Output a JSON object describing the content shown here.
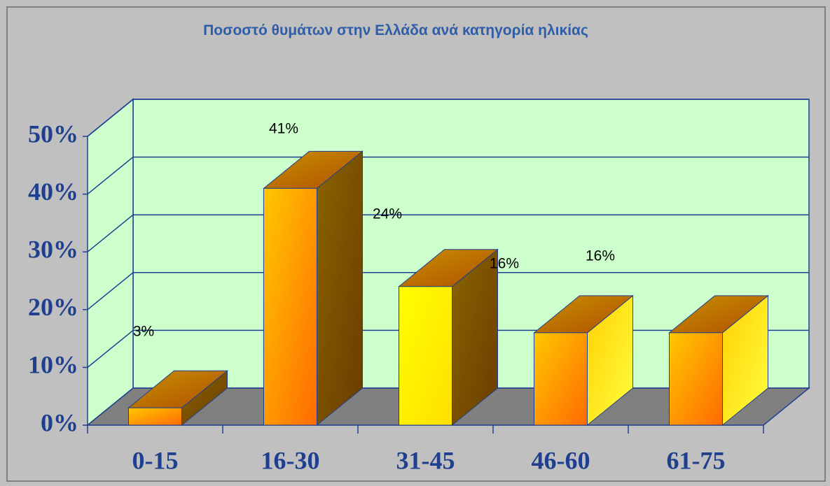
{
  "chart_data": {
    "type": "bar3d",
    "title": "Ποσοστό θυμάτων στην Ελλάδα ανά κατηγορία ηλικίας",
    "categories": [
      "0-15",
      "16-30",
      "31-45",
      "46-60",
      "61-75"
    ],
    "values": [
      3,
      41,
      24,
      16,
      16
    ],
    "value_labels": [
      "3%",
      "41%",
      "24%",
      "16%",
      "16%"
    ],
    "ylim": [
      0,
      50
    ],
    "yticks": [
      {
        "value": 0,
        "label": "0%"
      },
      {
        "value": 10,
        "label": "10%"
      },
      {
        "value": 20,
        "label": "20%"
      },
      {
        "value": 30,
        "label": "30%"
      },
      {
        "value": 40,
        "label": "40%"
      },
      {
        "value": 50,
        "label": "50%"
      }
    ],
    "grid": true
  }
}
